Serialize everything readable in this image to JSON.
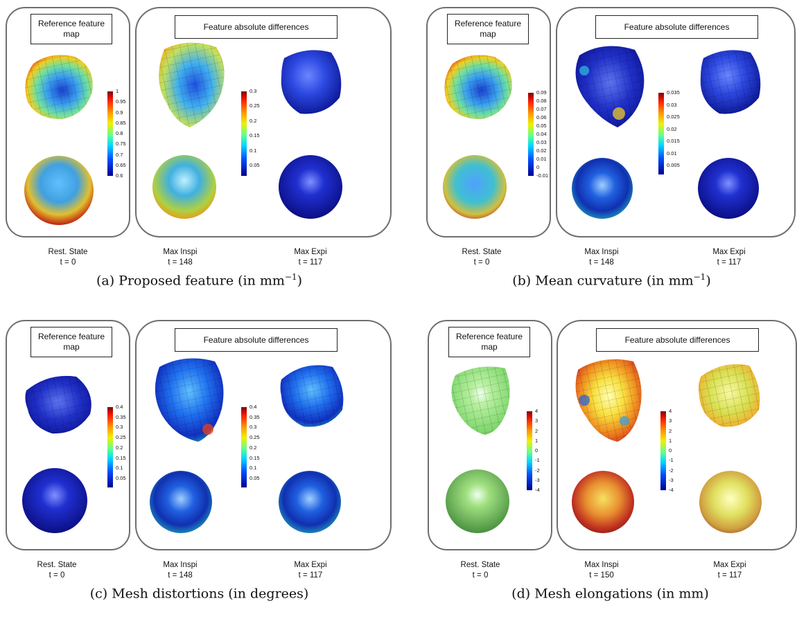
{
  "common": {
    "ref_label": "Reference feature map",
    "diff_label": "Feature absolute differences",
    "rest_state": "Rest. State",
    "max_inspi": "Max Inspi",
    "max_expi": "Max Expi",
    "t_rest": "t = 0",
    "t_expi": "t = 117"
  },
  "panels": [
    {
      "caption_prefix": "(a)  Proposed feature (in mm",
      "caption_sup": "−1",
      "caption_suffix": ")",
      "t_inspi": "t = 148",
      "ref_colorbar": [
        "1",
        "0.95",
        "0.9",
        "0.85",
        "0.8",
        "0.75",
        "0.7",
        "0.65",
        "0.6"
      ],
      "diff_colorbar": [
        "0.3",
        "0.25",
        "0.2",
        "0.15",
        "0.1",
        "0.05"
      ]
    },
    {
      "caption_prefix": "(b)  Mean curvature (in mm",
      "caption_sup": "−1",
      "caption_suffix": ")",
      "t_inspi": "t = 148",
      "ref_colorbar": [
        "0.09",
        "0.08",
        "0.07",
        "0.06",
        "0.05",
        "0.04",
        "0.03",
        "0.02",
        "0.01",
        "0",
        "-0.01"
      ],
      "diff_colorbar": [
        "0.035",
        "0.03",
        "0.025",
        "0.02",
        "0.015",
        "0.01",
        "0.005"
      ]
    },
    {
      "caption_prefix": "(c)  Mesh distortions (in degrees)",
      "caption_sup": "",
      "caption_suffix": "",
      "t_inspi": "t = 148",
      "ref_colorbar": [
        "0.4",
        "0.35",
        "0.3",
        "0.25",
        "0.2",
        "0.15",
        "0.1",
        "0.05"
      ],
      "diff_colorbar": [
        "0.4",
        "0.35",
        "0.3",
        "0.25",
        "0.2",
        "0.15",
        "0.1",
        "0.05"
      ]
    },
    {
      "caption_prefix": "(d)  Mesh elongations (in mm)",
      "caption_sup": "",
      "caption_suffix": "",
      "t_inspi": "t = 150",
      "ref_colorbar": [
        "4",
        "3",
        "2",
        "1",
        "0",
        "-1",
        "-2",
        "-3",
        "-4"
      ],
      "diff_colorbar": [
        "4",
        "3",
        "2",
        "1",
        "0",
        "-1",
        "-2",
        "-3",
        "-4"
      ]
    }
  ]
}
